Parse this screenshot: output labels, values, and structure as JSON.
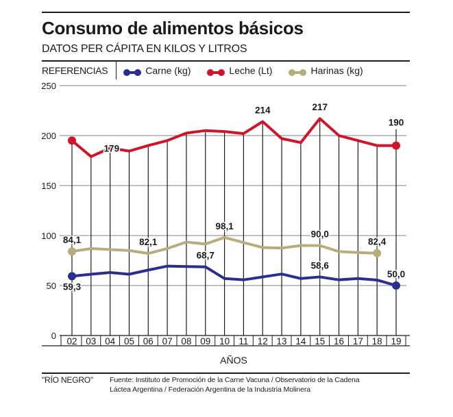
{
  "header": {
    "title": "Consumo de alimentos básicos",
    "subtitle": "DATOS PER CÁPITA EN KILOS Y LITROS"
  },
  "legend": {
    "label": "REFERENCIAS",
    "items": [
      {
        "name": "Carne (kg)",
        "color": "#2b2e8e"
      },
      {
        "name": "Leche (Lt)",
        "color": "#d0152a"
      },
      {
        "name": "Harinas (kg)",
        "color": "#b5ad7c"
      }
    ]
  },
  "footer": {
    "credit": "\"RÍO NEGRO\"",
    "source_line1": "Fuente: Instituto de Promoción de la Carne Vacuna / Observatorio de la Cadena",
    "source_line2": "Láctea Argentina / Federación Argentina de la Industria Molinera"
  },
  "chart_data": {
    "type": "line",
    "title": "Consumo de alimentos básicos",
    "subtitle": "DATOS PER CÁPITA EN KILOS Y LITROS",
    "xlabel": "AÑOS",
    "ylabel": "",
    "ylim": [
      0,
      250
    ],
    "yticks": [
      0,
      50,
      100,
      150,
      200,
      250
    ],
    "grid": true,
    "legend_position": "top",
    "categories": [
      "02",
      "03",
      "04",
      "05",
      "06",
      "07",
      "08",
      "09",
      "10",
      "11",
      "12",
      "13",
      "14",
      "15",
      "16",
      "17",
      "18",
      "19"
    ],
    "series": [
      {
        "name": "Carne (kg)",
        "color": "#2b2e8e",
        "values": [
          59.3,
          61.3,
          63,
          61.3,
          65.5,
          69.4,
          69,
          68.7,
          57,
          55.7,
          58.6,
          61.5,
          57,
          58.6,
          55.7,
          57,
          55.5,
          50.0
        ],
        "labels": [
          {
            "index": 0,
            "text": "59,3",
            "pos": "below"
          },
          {
            "index": 7,
            "text": "68,7",
            "pos": "above"
          },
          {
            "index": 13,
            "text": "58,6",
            "pos": "above"
          },
          {
            "index": 17,
            "text": "50,0",
            "pos": "above"
          }
        ],
        "endpoints": [
          0,
          17
        ]
      },
      {
        "name": "Leche (Lt)",
        "color": "#d0152a",
        "values": [
          195,
          179,
          187.5,
          184.5,
          190,
          195,
          202.5,
          205,
          204,
          202,
          214,
          197,
          193,
          217,
          200,
          195,
          190,
          190
        ],
        "labels": [
          {
            "index": 1,
            "text": "179",
            "pos": "right"
          },
          {
            "index": 10,
            "text": "214",
            "pos": "above"
          },
          {
            "index": 13,
            "text": "217",
            "pos": "above"
          },
          {
            "index": 17,
            "text": "190",
            "pos": "above-far"
          }
        ],
        "endpoints": [
          0,
          17
        ]
      },
      {
        "name": "Harinas (kg)",
        "color": "#b5ad7c",
        "values": [
          84.1,
          87,
          86,
          85,
          82.1,
          87,
          93.5,
          91.5,
          98.1,
          93,
          88,
          87.5,
          90,
          90.0,
          84,
          83,
          82.4,
          null
        ],
        "labels": [
          {
            "index": 0,
            "text": "84,1",
            "pos": "above"
          },
          {
            "index": 4,
            "text": "82,1",
            "pos": "above"
          },
          {
            "index": 8,
            "text": "98,1",
            "pos": "above"
          },
          {
            "index": 13,
            "text": "90,0",
            "pos": "above"
          },
          {
            "index": 16,
            "text": "82,4",
            "pos": "above"
          }
        ],
        "endpoints": [
          0,
          16
        ]
      }
    ]
  }
}
